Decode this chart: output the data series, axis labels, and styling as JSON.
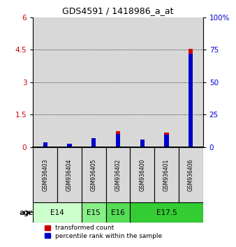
{
  "title": "GDS4591 / 1418986_a_at",
  "samples": [
    "GSM936403",
    "GSM936404",
    "GSM936405",
    "GSM936402",
    "GSM936400",
    "GSM936401",
    "GSM936406"
  ],
  "transformed_count": [
    0.12,
    0.08,
    0.38,
    0.72,
    0.3,
    0.68,
    4.55
  ],
  "percentile_rank_pct": [
    3.5,
    2.5,
    7.0,
    10.0,
    5.5,
    9.5,
    72.0
  ],
  "age_groups": [
    {
      "label": "E14",
      "span": [
        0,
        2
      ],
      "color": "#ccffcc"
    },
    {
      "label": "E15",
      "span": [
        2,
        3
      ],
      "color": "#88ee88"
    },
    {
      "label": "E16",
      "span": [
        3,
        4
      ],
      "color": "#55dd55"
    },
    {
      "label": "E17.5",
      "span": [
        4,
        7
      ],
      "color": "#33cc33"
    }
  ],
  "ylim_left": [
    0,
    6
  ],
  "ylim_right": [
    0,
    100
  ],
  "yticks_left": [
    0,
    1.5,
    3,
    4.5,
    6
  ],
  "yticks_right": [
    0,
    25,
    50,
    75,
    100
  ],
  "bar_color_red": "#cc0000",
  "bar_color_blue": "#0000cc",
  "bg_color": "#d8d8d8",
  "bar_width": 0.18
}
